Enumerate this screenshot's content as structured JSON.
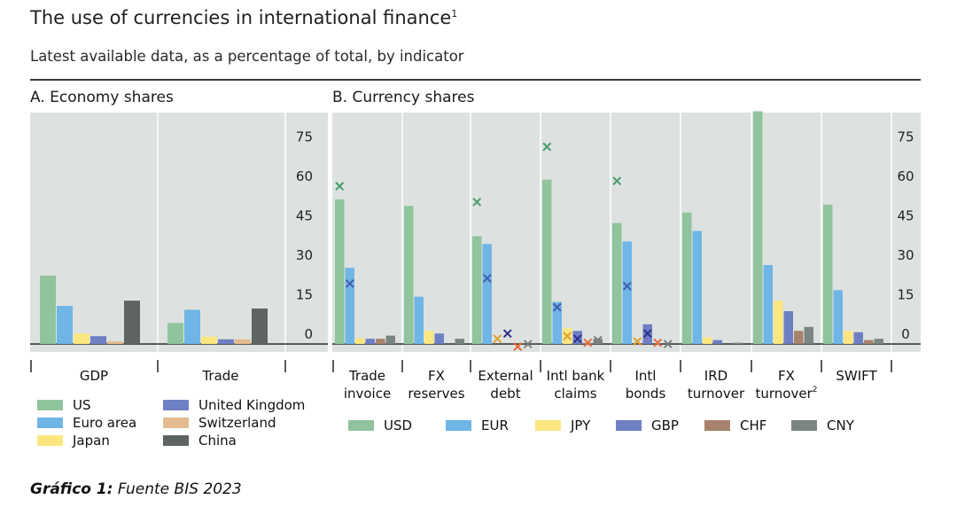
{
  "header": {
    "title": "The use of currencies in international finance",
    "title_footnote": "1",
    "subtitle": "Latest available data, as a percentage of total, by indicator"
  },
  "caption": {
    "label": "Gráfico 1:",
    "text": " Fuente BIS 2023"
  },
  "colors": {
    "panel_bg": "#dde2e0",
    "US": "#8fc49d",
    "EU": "#6fb5e6",
    "JP": "#fbe67f",
    "UK": "#6f7fc4",
    "CH": "#a8826c",
    "CN": "#7b8580",
    "CH_A": "#e2bb90",
    "CN_A": "#5e6462"
  },
  "chart_data": [
    {
      "type": "bar",
      "panel": "A",
      "title": "A. Economy shares",
      "categories": [
        "GDP",
        "Trade"
      ],
      "series": [
        {
          "name": "US",
          "values": [
            26,
            8
          ]
        },
        {
          "name": "Euro area",
          "values": [
            14.5,
            13
          ]
        },
        {
          "name": "Japan",
          "values": [
            4,
            2.8
          ]
        },
        {
          "name": "United Kingdom",
          "values": [
            3,
            1.8
          ]
        },
        {
          "name": "Switzerland",
          "values": [
            1,
            1.8
          ]
        },
        {
          "name": "China",
          "values": [
            16.5,
            13.5
          ]
        }
      ],
      "yticks": [
        "75",
        "60",
        "45",
        "30",
        "15",
        "0"
      ],
      "ylim": [
        -3,
        88
      ],
      "legend": [
        "US",
        "Euro area",
        "Japan",
        "United Kingdom",
        "Switzerland",
        "China"
      ],
      "legend_placement": "bottom"
    },
    {
      "type": "bar",
      "panel": "B",
      "title": "B. Currency shares",
      "categories": [
        {
          "line1": "Trade",
          "line2": "invoice",
          "sup": ""
        },
        {
          "line1": "FX",
          "line2": "reserves",
          "sup": ""
        },
        {
          "line1": "External",
          "line2": "debt",
          "sup": ""
        },
        {
          "line1": "Intl bank",
          "line2": "claims",
          "sup": ""
        },
        {
          "line1": "Intl",
          "line2": "bonds",
          "sup": ""
        },
        {
          "line1": "IRD",
          "line2": "turnover",
          "sup": ""
        },
        {
          "line1": "FX",
          "line2": "turnover",
          "sup": "2"
        },
        {
          "line1": "SWIFT",
          "line2": "",
          "sup": ""
        }
      ],
      "series": [
        {
          "name": "USD",
          "values": [
            55,
            52.5,
            41,
            62.5,
            46,
            50,
            88.5,
            53
          ],
          "markers": [
            60,
            null,
            54,
            75,
            62,
            null,
            null,
            null
          ]
        },
        {
          "name": "EUR",
          "values": [
            29,
            18,
            38,
            16,
            39,
            43,
            30,
            20.5
          ],
          "markers": [
            23,
            null,
            25,
            14,
            22,
            null,
            null,
            null
          ]
        },
        {
          "name": "JPY",
          "values": [
            2.2,
            5,
            0,
            6,
            0,
            2.5,
            16.5,
            5
          ],
          "markers": [
            null,
            null,
            2,
            3,
            1,
            null,
            null,
            null
          ]
        },
        {
          "name": "GBP",
          "values": [
            2,
            4,
            0,
            5,
            7.5,
            1.5,
            12.5,
            4.5
          ],
          "markers": [
            null,
            null,
            4,
            2,
            4,
            null,
            null,
            null
          ]
        },
        {
          "name": "CHF",
          "values": [
            2,
            0,
            0,
            0.5,
            0,
            0,
            5,
            1.5
          ],
          "markers": [
            null,
            null,
            -1,
            0.5,
            0.5,
            null,
            null,
            null
          ]
        },
        {
          "name": "CNY",
          "values": [
            3.2,
            2,
            0,
            2,
            0,
            0.5,
            6.5,
            2
          ],
          "markers": [
            null,
            null,
            0,
            1.5,
            0,
            null,
            null,
            null
          ]
        }
      ],
      "yticks": [
        "75",
        "60",
        "45",
        "30",
        "15",
        "0"
      ],
      "ylim": [
        -3,
        88
      ],
      "legend": [
        "USD",
        "EUR",
        "JPY",
        "GBP",
        "CHF",
        "CNY"
      ],
      "legend_placement": "bottom"
    }
  ]
}
